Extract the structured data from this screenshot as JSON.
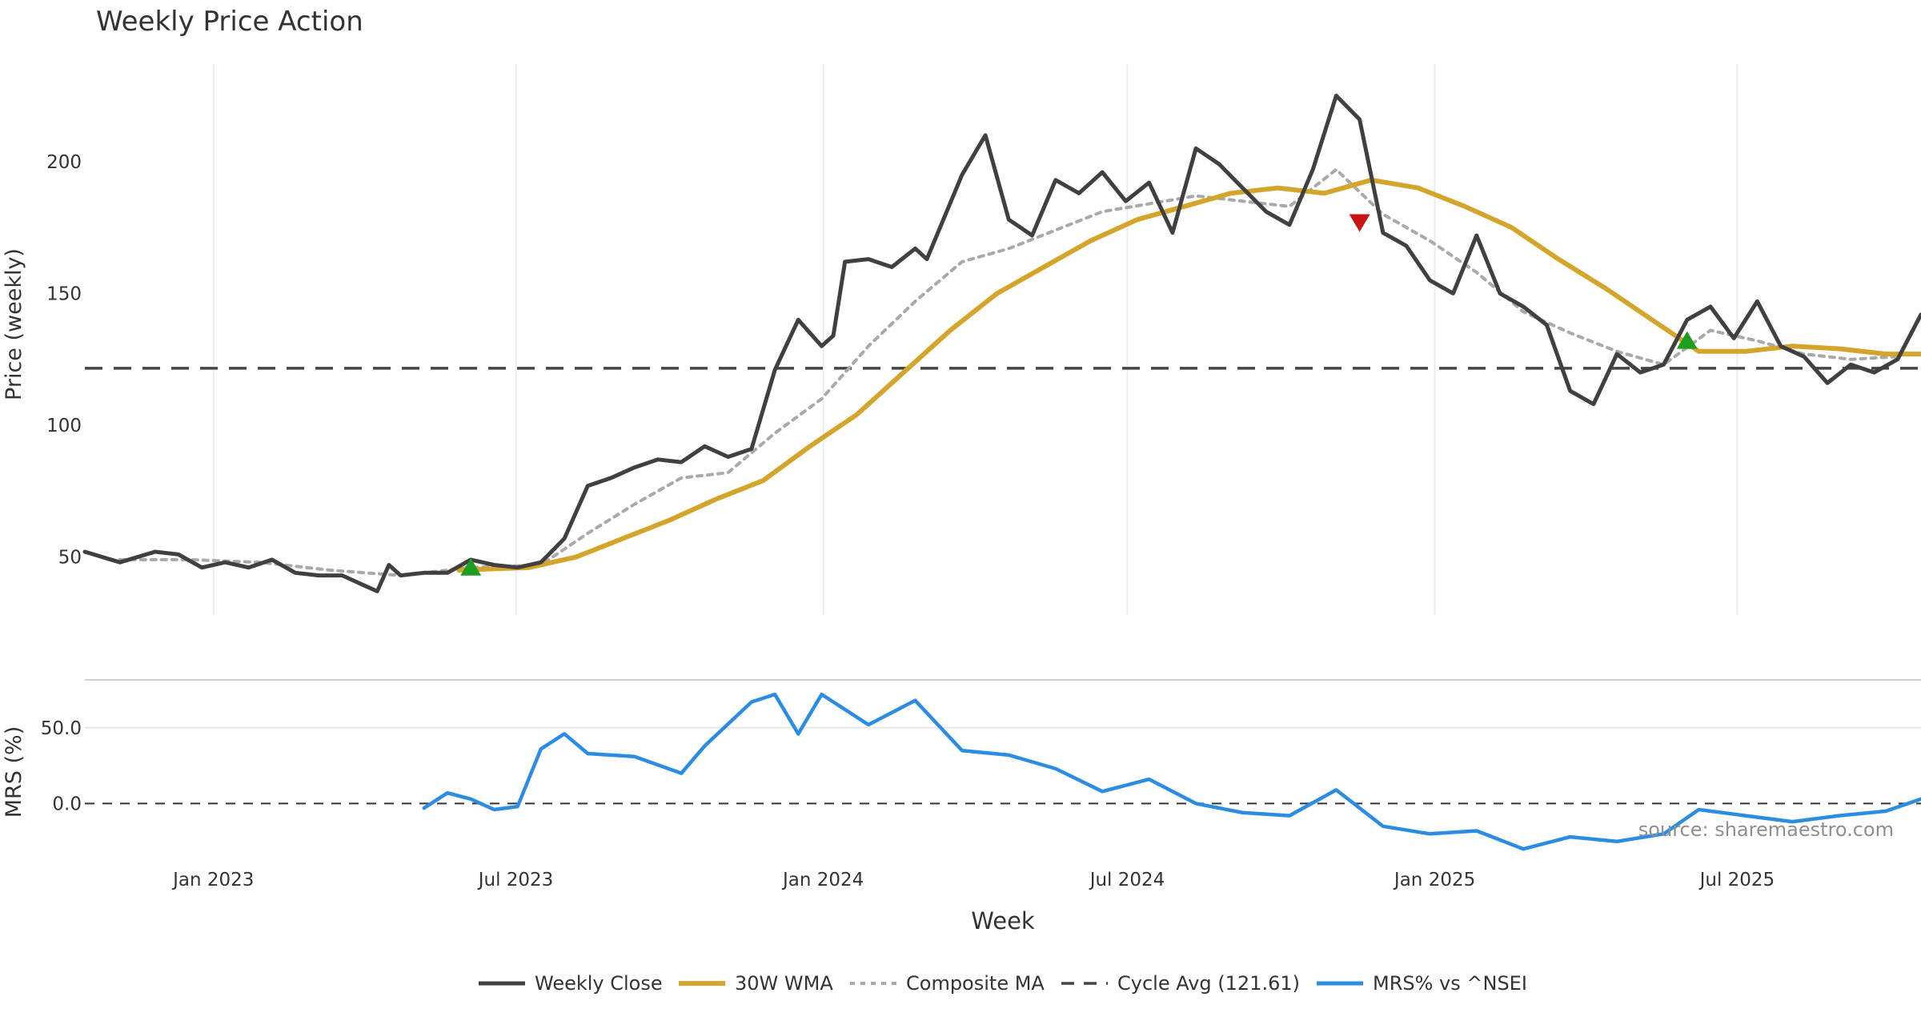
{
  "chart_data": {
    "type": "line",
    "title": "Weekly Price Action",
    "xlabel": "Week",
    "source_note": "source: sharemaestro.com",
    "x_ticks": [
      "Jan 2023",
      "Jul 2023",
      "Jan 2024",
      "Jul 2024",
      "Jan 2025",
      "Jul 2025"
    ],
    "x_tick_dates": [
      "2023-01-01",
      "2023-07-01",
      "2024-01-01",
      "2024-07-01",
      "2025-01-01",
      "2025-07-01"
    ],
    "x_range": [
      "2022-10-16",
      "2025-10-19"
    ],
    "price_panel": {
      "ylabel": "Price (weekly)",
      "y_ticks": [
        "50",
        "100",
        "150",
        "200"
      ],
      "y_tick_values": [
        50,
        100,
        150,
        200
      ],
      "ylim": [
        28,
        237
      ],
      "grid": "vertical"
    },
    "mrs_panel": {
      "ylabel": "MRS (%)",
      "y_ticks": [
        "0.0",
        "50.0"
      ],
      "y_tick_values": [
        0,
        50
      ],
      "ylim": [
        -32,
        80
      ]
    },
    "cycle_avg": 121.61,
    "legend": {
      "placement": "bottom-center",
      "entries": [
        "Weekly Close",
        "30W WMA",
        "Composite MA",
        "Cycle Avg (121.61)",
        "MRS% vs ^NSEI"
      ]
    },
    "colors": {
      "close": "#404040",
      "wma": "#d4a52a",
      "composite": "#a9a9a9",
      "cycle": "#444444",
      "mrs": "#2b8ce3",
      "buy_marker": "#1e9e1e",
      "sell_marker": "#c81414"
    },
    "markers": [
      {
        "type": "buy",
        "date": "2023-06-04",
        "value": 46
      },
      {
        "type": "sell",
        "date": "2024-11-17",
        "value": 177
      },
      {
        "type": "buy",
        "date": "2025-06-01",
        "value": 132
      }
    ],
    "series": [
      {
        "name": "Weekly Close",
        "points": [
          [
            "2022-10-16",
            52
          ],
          [
            "2022-11-06",
            48
          ],
          [
            "2022-11-27",
            52
          ],
          [
            "2022-12-11",
            51
          ],
          [
            "2022-12-25",
            46
          ],
          [
            "2023-01-08",
            48
          ],
          [
            "2023-01-22",
            46
          ],
          [
            "2023-02-05",
            49
          ],
          [
            "2023-02-19",
            44
          ],
          [
            "2023-03-05",
            43
          ],
          [
            "2023-03-19",
            43
          ],
          [
            "2023-04-02",
            39
          ],
          [
            "2023-04-09",
            37
          ],
          [
            "2023-04-16",
            47
          ],
          [
            "2023-04-23",
            43
          ],
          [
            "2023-05-07",
            44
          ],
          [
            "2023-05-21",
            44
          ],
          [
            "2023-06-04",
            49
          ],
          [
            "2023-06-18",
            47
          ],
          [
            "2023-07-02",
            46
          ],
          [
            "2023-07-16",
            48
          ],
          [
            "2023-07-30",
            57
          ],
          [
            "2023-08-13",
            77
          ],
          [
            "2023-08-27",
            80
          ],
          [
            "2023-09-10",
            84
          ],
          [
            "2023-09-24",
            87
          ],
          [
            "2023-10-08",
            86
          ],
          [
            "2023-10-22",
            92
          ],
          [
            "2023-11-05",
            88
          ],
          [
            "2023-11-19",
            91
          ],
          [
            "2023-12-03",
            121
          ],
          [
            "2023-12-17",
            140
          ],
          [
            "2023-12-31",
            130
          ],
          [
            "2024-01-07",
            134
          ],
          [
            "2024-01-14",
            162
          ],
          [
            "2024-01-28",
            163
          ],
          [
            "2024-02-11",
            160
          ],
          [
            "2024-02-25",
            167
          ],
          [
            "2024-03-03",
            163
          ],
          [
            "2024-03-24",
            195
          ],
          [
            "2024-04-07",
            210
          ],
          [
            "2024-04-21",
            178
          ],
          [
            "2024-05-05",
            172
          ],
          [
            "2024-05-19",
            193
          ],
          [
            "2024-06-02",
            188
          ],
          [
            "2024-06-16",
            196
          ],
          [
            "2024-06-30",
            185
          ],
          [
            "2024-07-14",
            192
          ],
          [
            "2024-07-28",
            173
          ],
          [
            "2024-08-11",
            205
          ],
          [
            "2024-08-25",
            199
          ],
          [
            "2024-09-08",
            190
          ],
          [
            "2024-09-22",
            181
          ],
          [
            "2024-10-06",
            176
          ],
          [
            "2024-10-20",
            197
          ],
          [
            "2024-11-03",
            225
          ],
          [
            "2024-11-17",
            216
          ],
          [
            "2024-12-01",
            173
          ],
          [
            "2024-12-15",
            168
          ],
          [
            "2024-12-29",
            155
          ],
          [
            "2025-01-12",
            150
          ],
          [
            "2025-01-26",
            172
          ],
          [
            "2025-02-09",
            150
          ],
          [
            "2025-02-23",
            145
          ],
          [
            "2025-03-09",
            138
          ],
          [
            "2025-03-23",
            113
          ],
          [
            "2025-04-06",
            108
          ],
          [
            "2025-04-20",
            127
          ],
          [
            "2025-05-04",
            120
          ],
          [
            "2025-05-18",
            123
          ],
          [
            "2025-06-01",
            140
          ],
          [
            "2025-06-15",
            145
          ],
          [
            "2025-06-29",
            133
          ],
          [
            "2025-07-13",
            147
          ],
          [
            "2025-07-27",
            130
          ],
          [
            "2025-08-10",
            126
          ],
          [
            "2025-08-24",
            116
          ],
          [
            "2025-09-07",
            123
          ],
          [
            "2025-09-21",
            120
          ],
          [
            "2025-10-05",
            125
          ],
          [
            "2025-10-19",
            142
          ]
        ]
      },
      {
        "name": "30W WMA",
        "points": [
          [
            "2023-05-28",
            45
          ],
          [
            "2023-07-09",
            46
          ],
          [
            "2023-08-06",
            50
          ],
          [
            "2023-09-03",
            57
          ],
          [
            "2023-10-01",
            64
          ],
          [
            "2023-10-29",
            72
          ],
          [
            "2023-11-26",
            79
          ],
          [
            "2023-12-24",
            92
          ],
          [
            "2024-01-21",
            104
          ],
          [
            "2024-02-18",
            120
          ],
          [
            "2024-03-17",
            136
          ],
          [
            "2024-04-14",
            150
          ],
          [
            "2024-05-12",
            160
          ],
          [
            "2024-06-09",
            170
          ],
          [
            "2024-07-07",
            178
          ],
          [
            "2024-08-04",
            183
          ],
          [
            "2024-09-01",
            188
          ],
          [
            "2024-09-29",
            190
          ],
          [
            "2024-10-27",
            188
          ],
          [
            "2024-11-24",
            193
          ],
          [
            "2024-12-22",
            190
          ],
          [
            "2025-01-19",
            183
          ],
          [
            "2025-02-16",
            175
          ],
          [
            "2025-03-16",
            163
          ],
          [
            "2025-04-13",
            152
          ],
          [
            "2025-05-11",
            140
          ],
          [
            "2025-06-08",
            128
          ],
          [
            "2025-07-06",
            128
          ],
          [
            "2025-08-03",
            130
          ],
          [
            "2025-08-31",
            129
          ],
          [
            "2025-09-28",
            127
          ],
          [
            "2025-10-19",
            127
          ]
        ]
      },
      {
        "name": "Composite MA",
        "points": [
          [
            "2022-11-06",
            49
          ],
          [
            "2022-12-18",
            49
          ],
          [
            "2023-01-29",
            48
          ],
          [
            "2023-03-12",
            45
          ],
          [
            "2023-04-23",
            43
          ],
          [
            "2023-06-04",
            46
          ],
          [
            "2023-07-16",
            47
          ],
          [
            "2023-08-13",
            59
          ],
          [
            "2023-09-10",
            70
          ],
          [
            "2023-10-08",
            80
          ],
          [
            "2023-11-05",
            82
          ],
          [
            "2023-12-03",
            97
          ],
          [
            "2023-12-31",
            110
          ],
          [
            "2024-01-28",
            130
          ],
          [
            "2024-02-25",
            147
          ],
          [
            "2024-03-24",
            162
          ],
          [
            "2024-04-21",
            167
          ],
          [
            "2024-05-19",
            174
          ],
          [
            "2024-06-16",
            181
          ],
          [
            "2024-07-14",
            184
          ],
          [
            "2024-08-11",
            187
          ],
          [
            "2024-09-08",
            185
          ],
          [
            "2024-10-06",
            183
          ],
          [
            "2024-11-03",
            197
          ],
          [
            "2024-12-01",
            180
          ],
          [
            "2024-12-29",
            170
          ],
          [
            "2025-01-26",
            158
          ],
          [
            "2025-02-23",
            143
          ],
          [
            "2025-03-23",
            135
          ],
          [
            "2025-04-20",
            128
          ],
          [
            "2025-05-18",
            123
          ],
          [
            "2025-06-15",
            136
          ],
          [
            "2025-07-13",
            132
          ],
          [
            "2025-08-10",
            127
          ],
          [
            "2025-09-07",
            125
          ],
          [
            "2025-10-05",
            126
          ]
        ]
      },
      {
        "name": "MRS% vs ^NSEI",
        "points": [
          [
            "2023-05-07",
            -3
          ],
          [
            "2023-05-21",
            7
          ],
          [
            "2023-06-04",
            3
          ],
          [
            "2023-06-18",
            -4
          ],
          [
            "2023-07-02",
            -2
          ],
          [
            "2023-07-16",
            36
          ],
          [
            "2023-07-30",
            46
          ],
          [
            "2023-08-13",
            33
          ],
          [
            "2023-09-10",
            31
          ],
          [
            "2023-10-08",
            20
          ],
          [
            "2023-10-22",
            38
          ],
          [
            "2023-11-19",
            67
          ],
          [
            "2023-12-03",
            72
          ],
          [
            "2023-12-17",
            46
          ],
          [
            "2023-12-31",
            72
          ],
          [
            "2024-01-28",
            52
          ],
          [
            "2024-02-25",
            68
          ],
          [
            "2024-03-24",
            35
          ],
          [
            "2024-04-21",
            32
          ],
          [
            "2024-05-19",
            23
          ],
          [
            "2024-06-16",
            8
          ],
          [
            "2024-07-14",
            16
          ],
          [
            "2024-08-11",
            0
          ],
          [
            "2024-09-08",
            -6
          ],
          [
            "2024-10-06",
            -8
          ],
          [
            "2024-11-03",
            9
          ],
          [
            "2024-12-01",
            -15
          ],
          [
            "2024-12-29",
            -20
          ],
          [
            "2025-01-26",
            -18
          ],
          [
            "2025-02-23",
            -30
          ],
          [
            "2025-03-23",
            -22
          ],
          [
            "2025-04-20",
            -25
          ],
          [
            "2025-05-18",
            -20
          ],
          [
            "2025-06-08",
            -4
          ],
          [
            "2025-07-06",
            -8
          ],
          [
            "2025-08-03",
            -12
          ],
          [
            "2025-08-31",
            -8
          ],
          [
            "2025-09-28",
            -5
          ],
          [
            "2025-10-19",
            3
          ]
        ]
      }
    ]
  }
}
